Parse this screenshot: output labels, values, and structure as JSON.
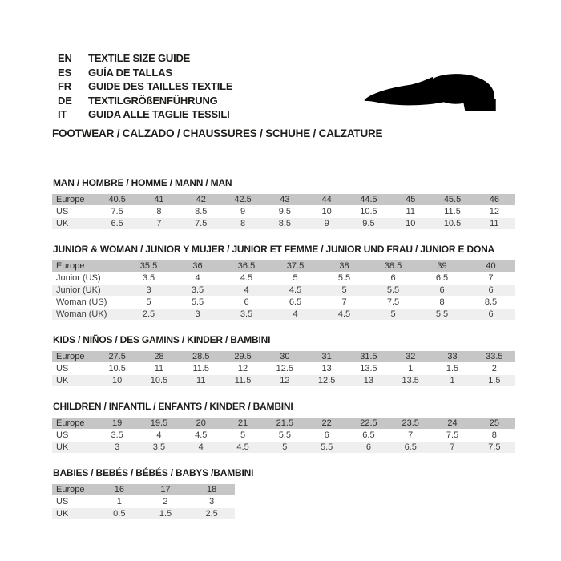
{
  "header": {
    "languages": [
      {
        "code": "EN",
        "label": "TEXTILE SIZE GUIDE"
      },
      {
        "code": "ES",
        "label": "GUÍA DE TALLAS"
      },
      {
        "code": "FR",
        "label": "GUIDE DES TAILLES TEXTILE"
      },
      {
        "code": "DE",
        "label": "TEXTILGRÖßENFÜHRUNG"
      },
      {
        "code": "IT",
        "label": "GUIDA ALLE TAGLIE TESSILI"
      }
    ],
    "footwear_title": "FOOTWEAR / CALZADO / CHAUSSURES / SCHUHE / CALZATURE",
    "shoe_icon": "dress-shoe-silhouette"
  },
  "colors": {
    "header_row_bg": "#c6c6c6",
    "alt_row_bg": "#efefef",
    "table_text": "#3c3c3c",
    "title_text": "#1d1d1b",
    "shoe": "#000000"
  },
  "size_tables": [
    {
      "id": "man",
      "title": "MAN / HOMBRE / HOMME / MANN / MAN",
      "layout": "wide",
      "rows": [
        {
          "label": "Europe",
          "emphasis": "header",
          "values": [
            "40.5",
            "41",
            "42",
            "42.5",
            "43",
            "44",
            "44.5",
            "45",
            "45.5",
            "46"
          ]
        },
        {
          "label": "US",
          "values": [
            "7.5",
            "8",
            "8.5",
            "9",
            "9.5",
            "10",
            "10.5",
            "11",
            "11.5",
            "12"
          ]
        },
        {
          "label": "UK",
          "values": [
            "6.5",
            "7",
            "7.5",
            "8",
            "8.5",
            "9",
            "9.5",
            "10",
            "10.5",
            "11"
          ]
        }
      ]
    },
    {
      "id": "junior-woman",
      "title": "JUNIOR & WOMAN / JUNIOR Y MUJER / JUNIOR ET FEMME / JUNIOR UND FRAU / JUNIOR E DONA",
      "layout": "junior",
      "rows": [
        {
          "label": "Europe",
          "emphasis": "header",
          "values": [
            "35.5",
            "36",
            "36.5",
            "37.5",
            "38",
            "38.5",
            "39",
            "40"
          ]
        },
        {
          "label": "Junior (US)",
          "values": [
            "3.5",
            "4",
            "4.5",
            "5",
            "5.5",
            "6",
            "6.5",
            "7"
          ]
        },
        {
          "label": "Junior (UK)",
          "values": [
            "3",
            "3.5",
            "4",
            "4.5",
            "5",
            "5.5",
            "6",
            "6"
          ]
        },
        {
          "label": "Woman (US)",
          "values": [
            "5",
            "5.5",
            "6",
            "6.5",
            "7",
            "7.5",
            "8",
            "8.5"
          ]
        },
        {
          "label": "Woman (UK)",
          "values": [
            "2.5",
            "3",
            "3.5",
            "4",
            "4.5",
            "5",
            "5.5",
            "6"
          ]
        }
      ]
    },
    {
      "id": "kids",
      "title": "KIDS / NIÑOS / DES GAMINS / KINDER / BAMBINI",
      "layout": "wide",
      "rows": [
        {
          "label": "Europe",
          "emphasis": "header",
          "values": [
            "27.5",
            "28",
            "28.5",
            "29.5",
            "30",
            "31",
            "31.5",
            "32",
            "33",
            "33.5"
          ]
        },
        {
          "label": "US",
          "values": [
            "10.5",
            "11",
            "11.5",
            "12",
            "12.5",
            "13",
            "13.5",
            "1",
            "1.5",
            "2"
          ]
        },
        {
          "label": "UK",
          "values": [
            "10",
            "10.5",
            "11",
            "11.5",
            "12",
            "12.5",
            "13",
            "13.5",
            "1",
            "1.5"
          ]
        }
      ]
    },
    {
      "id": "children",
      "title": "CHILDREN / INFANTIL / ENFANTS / KINDER / BAMBINI",
      "layout": "wide",
      "rows": [
        {
          "label": "Europe",
          "emphasis": "header",
          "values": [
            "19",
            "19.5",
            "20",
            "21",
            "21.5",
            "22",
            "22.5",
            "23.5",
            "24",
            "25"
          ]
        },
        {
          "label": "US",
          "values": [
            "3.5",
            "4",
            "4.5",
            "5",
            "5.5",
            "6",
            "6.5",
            "7",
            "7.5",
            "8"
          ]
        },
        {
          "label": "UK",
          "values": [
            "3",
            "3.5",
            "4",
            "4.5",
            "5",
            "5.5",
            "6",
            "6.5",
            "7",
            "7.5"
          ]
        }
      ]
    },
    {
      "id": "babies",
      "title": "BABIES / BEBÉS / BÉBÉS / BABYS /BAMBINI",
      "layout": "babies",
      "rows": [
        {
          "label": "Europe",
          "emphasis": "header",
          "values": [
            "16",
            "17",
            "18"
          ]
        },
        {
          "label": "US",
          "values": [
            "1",
            "2",
            "3"
          ]
        },
        {
          "label": "UK",
          "values": [
            "0.5",
            "1.5",
            "2.5"
          ]
        }
      ]
    }
  ]
}
